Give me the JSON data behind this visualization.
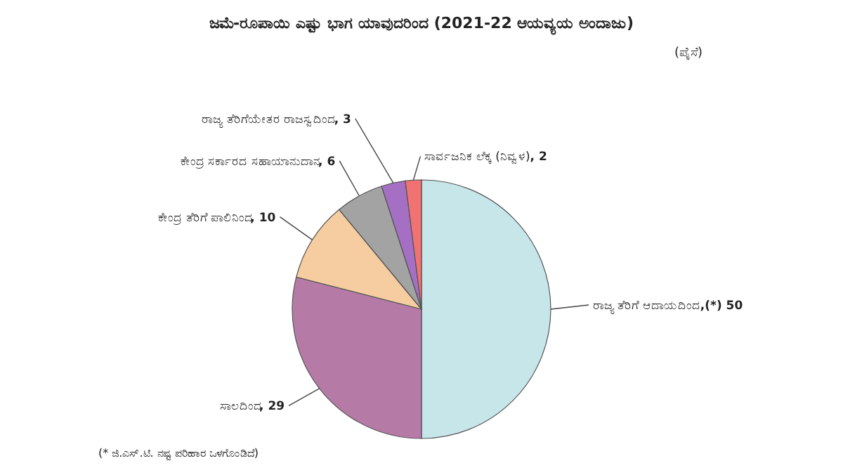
{
  "chart_data": {
    "type": "pie",
    "title": "ಜಮೆ-ರೂಪಾಯಿ ಎಷ್ಟು ಭಾಗ ಯಾವುದರಿಂದ (2021-22 ಆಯವ್ಯಯ ಅಂದಾಜು)",
    "subtitle": "(ಪೈಸೆ)",
    "categories": [
      "ರಾಜ್ಯ ತೆರಿಗೆ ಆದಾಯದಿಂದ",
      "ಸಾಲದಿಂದ",
      "ಕೇಂದ್ರ ತೆರಿಗೆ ಪಾಲಿನಿಂದ",
      "ಕೇಂದ್ರ ಸರ್ಕಾರದ ಸಹಾಯಾನುದಾನ",
      "ರಾಜ್ಯ ತೆರಿಗೆಯೇತರ ರಾಜಸ್ವದಿಂದ",
      "ಸಾರ್ವಜನಿಕ ಲೆಕ್ಕ (ನಿವ್ವಳ)"
    ],
    "values": [
      50,
      29,
      10,
      6,
      3,
      2
    ],
    "colors": [
      "#c6e6ea",
      "#b57ba6",
      "#f6cda0",
      "#a3a3a3",
      "#a56fc4",
      "#f07272"
    ],
    "value_labels": [
      ",(*) 50",
      ", 29",
      ", 10",
      ", 6",
      ", 3",
      ", 2"
    ],
    "annotations": [
      "(* ಜಿ.ಎಸ್.ಟಿ. ನಷ್ಟ ಪರಿಹಾರ ಒಳಗೊಂಡಿದೆ)"
    ]
  }
}
